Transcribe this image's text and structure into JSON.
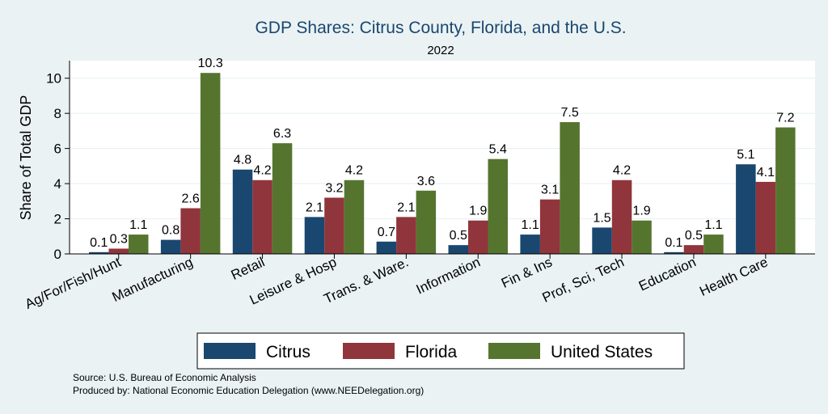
{
  "chart_data": {
    "type": "bar",
    "title": "GDP Shares: Citrus County, Florida, and the U.S.",
    "subtitle": "2022",
    "ylabel": "Share of Total GDP",
    "xlabel": "",
    "ylim": [
      0,
      11
    ],
    "yticks": [
      0,
      2,
      4,
      6,
      8,
      10
    ],
    "grid": true,
    "legend_position": "bottom",
    "categories": [
      "Ag/For/Fish/Hunt",
      "Manufacturing",
      "Retail",
      "Leisure & Hosp",
      "Trans. & Ware.",
      "Information",
      "Fin & Ins",
      "Prof, Sci, Tech",
      "Education",
      "Health Care"
    ],
    "series": [
      {
        "name": "Citrus",
        "color": "#1a476f",
        "values": [
          0.1,
          0.8,
          4.8,
          2.1,
          0.7,
          0.5,
          1.1,
          1.5,
          0.1,
          5.1
        ]
      },
      {
        "name": "Florida",
        "color": "#90353b",
        "values": [
          0.3,
          2.6,
          4.2,
          3.2,
          2.1,
          1.9,
          3.1,
          4.2,
          0.5,
          4.1
        ]
      },
      {
        "name": "United States",
        "color": "#55752f",
        "values": [
          1.1,
          10.3,
          6.3,
          4.2,
          3.6,
          5.4,
          7.5,
          1.9,
          1.1,
          7.2
        ]
      }
    ]
  },
  "footer": {
    "source": "Source: U.S. Bureau of Economic Analysis",
    "produced_by": "Produced by: National Economic Education Delegation (www.NEEDelegation.org)"
  }
}
